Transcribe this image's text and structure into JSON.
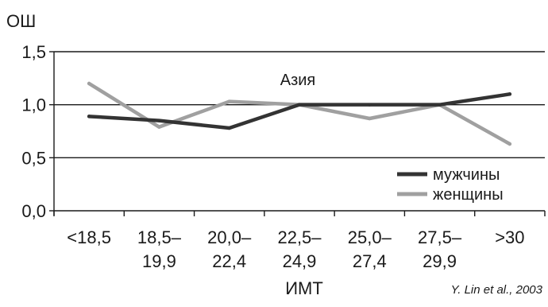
{
  "chart_data": {
    "type": "line",
    "title": "",
    "xlabel": "ИМТ",
    "ylabel": "ОШ",
    "categories": [
      [
        "<18,5"
      ],
      [
        "18,5–",
        "19,9"
      ],
      [
        "20,0–",
        "22,4"
      ],
      [
        "22,5–",
        "24,9"
      ],
      [
        "25,0–",
        "27,4"
      ],
      [
        "27,5–",
        "29,9"
      ],
      [
        ">30"
      ]
    ],
    "y_ticks": [
      "0,0",
      "0,5",
      "1,0",
      "1,5"
    ],
    "ylim": [
      0,
      1.5
    ],
    "grid": true,
    "annotation": "Азия",
    "source": "Y. Lin et al., 2003",
    "legend_position": "bottom-right",
    "series": [
      {
        "name": "мужчины",
        "color": "#333333",
        "values": [
          0.89,
          0.85,
          0.78,
          1.0,
          1.0,
          1.0,
          1.1
        ]
      },
      {
        "name": "женщины",
        "color": "#a0a0a0",
        "values": [
          1.2,
          0.79,
          1.03,
          1.0,
          0.87,
          1.0,
          0.63
        ]
      }
    ]
  }
}
